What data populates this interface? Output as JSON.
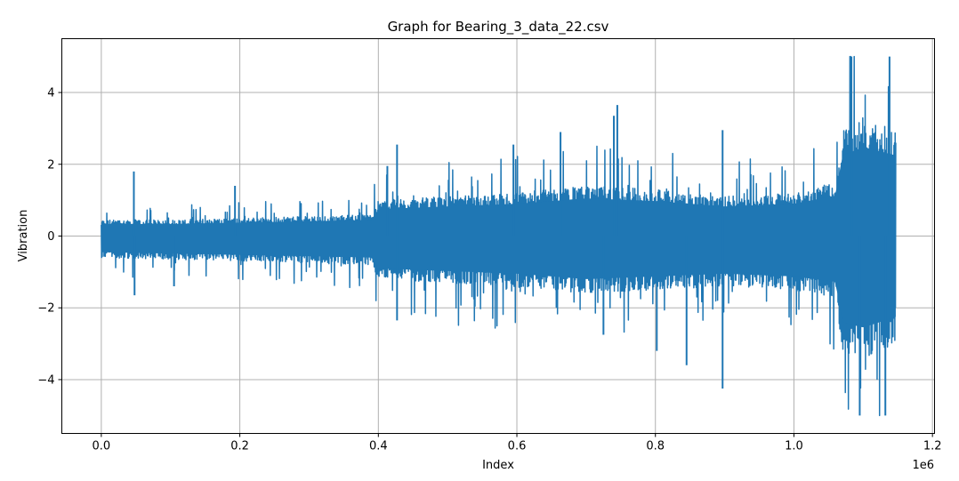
{
  "figure": {
    "title": "Graph for Bearing_3_data_22.csv",
    "xlabel": "Index",
    "ylabel": "Vibration",
    "x_offset_label": "1e6",
    "line_color": "#1f77b4",
    "grid_color": "#b0b0b0"
  },
  "chart_data": {
    "type": "line",
    "title": "Graph for Bearing_3_data_22.csv",
    "xlabel": "Index",
    "ylabel": "Vibration",
    "x_scale_multiplier": "1e6",
    "xlim": [
      -0.057,
      1.203
    ],
    "ylim": [
      -5.5,
      5.5
    ],
    "x_ticks": [
      0.0,
      0.2,
      0.4,
      0.6,
      0.8,
      1.0,
      1.2
    ],
    "x_tick_labels": [
      "0.0",
      "0.2",
      "0.4",
      "0.6",
      "0.8",
      "1.0",
      "1.2"
    ],
    "y_ticks": [
      -4,
      -2,
      0,
      2,
      4
    ],
    "y_tick_labels": [
      "−4",
      "−2",
      "0",
      "2",
      "4"
    ],
    "grid": true,
    "legend": null,
    "series": [
      {
        "name": "Vibration",
        "x_range": [
          0,
          1147000
        ],
        "envelope_description": "Dense vibration signal; amplitude grows in stages. Values below give approx. typical upper/lower envelope (x in units of 1e6).",
        "envelope": [
          {
            "x": 0.0,
            "upper": 0.45,
            "lower": -0.6
          },
          {
            "x": 0.1,
            "upper": 0.45,
            "lower": -0.65
          },
          {
            "x": 0.2,
            "upper": 0.5,
            "lower": -0.7
          },
          {
            "x": 0.3,
            "upper": 0.55,
            "lower": -0.75
          },
          {
            "x": 0.39,
            "upper": 0.6,
            "lower": -0.8
          },
          {
            "x": 0.4,
            "upper": 1.0,
            "lower": -1.2
          },
          {
            "x": 0.5,
            "upper": 1.1,
            "lower": -1.3
          },
          {
            "x": 0.6,
            "upper": 1.2,
            "lower": -1.4
          },
          {
            "x": 0.7,
            "upper": 1.4,
            "lower": -1.6
          },
          {
            "x": 0.8,
            "upper": 1.3,
            "lower": -1.5
          },
          {
            "x": 0.9,
            "upper": 1.1,
            "lower": -1.4
          },
          {
            "x": 1.0,
            "upper": 1.2,
            "lower": -1.5
          },
          {
            "x": 1.06,
            "upper": 1.5,
            "lower": -1.7
          },
          {
            "x": 1.07,
            "upper": 3.0,
            "lower": -3.2
          },
          {
            "x": 1.1,
            "upper": 3.3,
            "lower": -3.4
          },
          {
            "x": 1.147,
            "upper": 3.0,
            "lower": -3.0
          }
        ],
        "notable_peaks": [
          {
            "x": 0.047,
            "y": 1.8
          },
          {
            "x": 0.048,
            "y": -1.65
          },
          {
            "x": 0.193,
            "y": 1.4
          },
          {
            "x": 0.105,
            "y": -1.4
          },
          {
            "x": 0.413,
            "y": 1.95
          },
          {
            "x": 0.427,
            "y": 2.55
          },
          {
            "x": 0.427,
            "y": -2.35
          },
          {
            "x": 0.595,
            "y": 2.55
          },
          {
            "x": 0.663,
            "y": 2.9
          },
          {
            "x": 0.745,
            "y": 3.65
          },
          {
            "x": 0.74,
            "y": 3.35
          },
          {
            "x": 0.725,
            "y": -2.75
          },
          {
            "x": 0.802,
            "y": -3.2
          },
          {
            "x": 0.845,
            "y": -3.6
          },
          {
            "x": 0.897,
            "y": 2.95
          },
          {
            "x": 0.897,
            "y": -4.25
          },
          {
            "x": 1.083,
            "y": 5.0
          },
          {
            "x": 1.095,
            "y": -5.0
          },
          {
            "x": 1.138,
            "y": 5.0
          },
          {
            "x": 1.132,
            "y": -5.0
          }
        ]
      }
    ]
  }
}
